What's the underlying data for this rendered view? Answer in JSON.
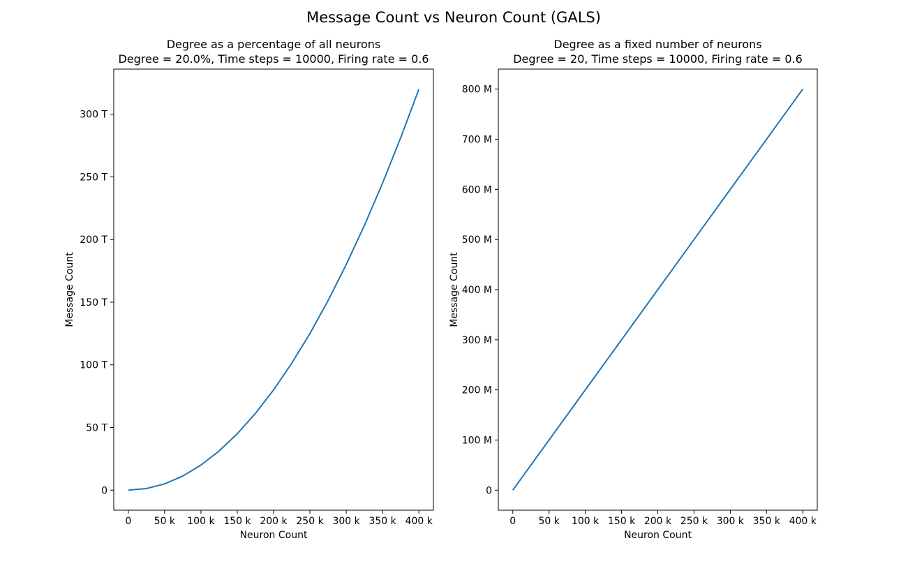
{
  "figure": {
    "suptitle": "Message Count vs Neuron Count (GALS)"
  },
  "colors": {
    "line": "#1f77b4",
    "axes": "#000000",
    "background": "#ffffff"
  },
  "chart_data": [
    {
      "type": "line",
      "title": "Degree as a percentage of all neurons",
      "subtitle": "Degree = 20.0%, Time steps = 10000, Firing rate = 0.6",
      "xlabel": "Neuron Count",
      "ylabel": "Message Count",
      "xlim": [
        -20000,
        420000
      ],
      "ylim": [
        -16000000000000,
        336000000000000
      ],
      "x_ticks": [
        0,
        50000,
        100000,
        150000,
        200000,
        250000,
        300000,
        350000,
        400000
      ],
      "x_tick_labels": [
        "0",
        "50 k",
        "100 k",
        "150 k",
        "200 k",
        "250 k",
        "300 k",
        "350 k",
        "400 k"
      ],
      "y_ticks": [
        0,
        50000000000000,
        100000000000000,
        150000000000000,
        200000000000000,
        250000000000000,
        300000000000000
      ],
      "y_tick_labels": [
        "0",
        "50 T",
        "100 T",
        "150 T",
        "200 T",
        "250 T",
        "300 T"
      ],
      "grid": false,
      "series": [
        {
          "x": [
            0,
            25000,
            50000,
            75000,
            100000,
            125000,
            150000,
            175000,
            200000,
            225000,
            250000,
            275000,
            300000,
            325000,
            350000,
            375000,
            400000
          ],
          "y": [
            0,
            1250000000000,
            5000000000000,
            11250000000000,
            20000000000000,
            31250000000000,
            45000000000000,
            61250000000000,
            80000000000000,
            101250000000000,
            125000000000000,
            151250000000000,
            180000000000000,
            211250000000000,
            245000000000000,
            281250000000000,
            320000000000000
          ]
        }
      ]
    },
    {
      "type": "line",
      "title": "Degree as a fixed number of neurons",
      "subtitle": "Degree = 20, Time steps = 10000, Firing rate = 0.6",
      "xlabel": "Neuron Count",
      "ylabel": "Message Count",
      "xlim": [
        -20000,
        420000
      ],
      "ylim": [
        -40000000,
        840000000
      ],
      "x_ticks": [
        0,
        50000,
        100000,
        150000,
        200000,
        250000,
        300000,
        350000,
        400000
      ],
      "x_tick_labels": [
        "0",
        "50 k",
        "100 k",
        "150 k",
        "200 k",
        "250 k",
        "300 k",
        "350 k",
        "400 k"
      ],
      "y_ticks": [
        0,
        100000000,
        200000000,
        300000000,
        400000000,
        500000000,
        600000000,
        700000000,
        800000000
      ],
      "y_tick_labels": [
        "0",
        "100 M",
        "200 M",
        "300 M",
        "400 M",
        "500 M",
        "600 M",
        "700 M",
        "800 M"
      ],
      "grid": false,
      "series": [
        {
          "x": [
            0,
            50000,
            100000,
            150000,
            200000,
            250000,
            300000,
            350000,
            400000
          ],
          "y": [
            0,
            100000000,
            200000000,
            300000000,
            400000000,
            500000000,
            600000000,
            700000000,
            800000000
          ]
        }
      ]
    }
  ]
}
